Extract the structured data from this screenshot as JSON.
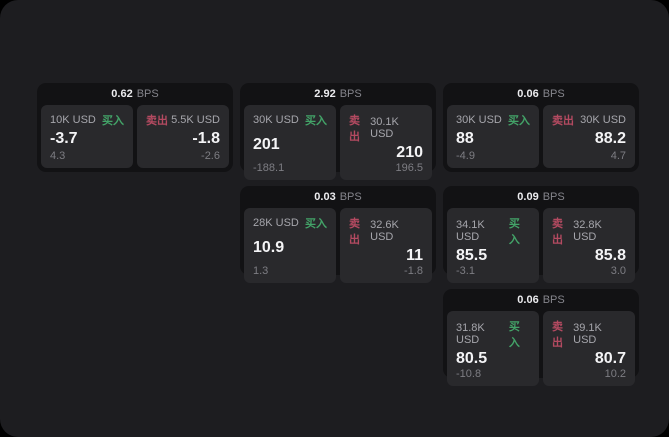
{
  "labels": {
    "bps_unit": "BPS",
    "buy": "买入",
    "sell": "卖出"
  },
  "colors": {
    "buy": "#43a368",
    "sell": "#b44a61",
    "window_bg": "#1d1d20",
    "card_bg": "#121214",
    "panel_bg": "#29292c"
  },
  "cards": [
    {
      "bps": "0.62",
      "buy": {
        "amount": "10K USD",
        "value": "-3.7",
        "sub": "4.3"
      },
      "sell": {
        "amount": "5.5K USD",
        "value": "-1.8",
        "sub": "-2.6"
      }
    },
    {
      "bps": "2.92",
      "buy": {
        "amount": "30K USD",
        "value": "201",
        "sub": "-188.1"
      },
      "sell": {
        "amount": "30.1K USD",
        "value": "210",
        "sub": "196.5"
      }
    },
    {
      "bps": "0.06",
      "buy": {
        "amount": "30K USD",
        "value": "88",
        "sub": "-4.9"
      },
      "sell": {
        "amount": "30K USD",
        "value": "88.2",
        "sub": "4.7"
      }
    },
    {
      "bps": "0.03",
      "buy": {
        "amount": "28K USD",
        "value": "10.9",
        "sub": "1.3"
      },
      "sell": {
        "amount": "32.6K USD",
        "value": "11",
        "sub": "-1.8"
      }
    },
    {
      "bps": "0.09",
      "buy": {
        "amount": "34.1K USD",
        "value": "85.5",
        "sub": "-3.1"
      },
      "sell": {
        "amount": "32.8K USD",
        "value": "85.8",
        "sub": "3.0"
      }
    },
    {
      "bps": "0.06",
      "buy": {
        "amount": "31.8K USD",
        "value": "80.5",
        "sub": "-10.8"
      },
      "sell": {
        "amount": "39.1K USD",
        "value": "80.7",
        "sub": "10.2"
      }
    }
  ]
}
